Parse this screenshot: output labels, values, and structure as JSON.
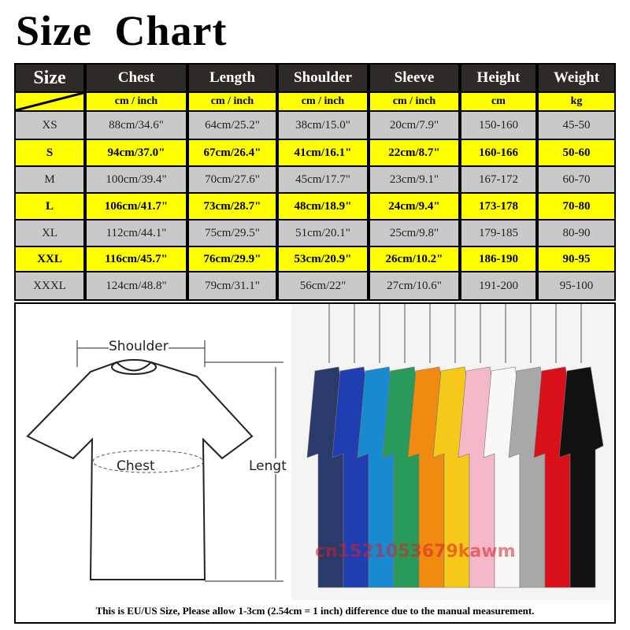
{
  "title": "Size  Chart",
  "headers": [
    "Size",
    "Chest",
    "Length",
    "Shoulder",
    "Sleeve",
    "Height",
    "Weight"
  ],
  "units": [
    "",
    "cm / inch",
    "cm / inch",
    "cm / inch",
    "cm / inch",
    "cm",
    "kg"
  ],
  "rows": [
    [
      "XS",
      "88cm/34.6\"",
      "64cm/25.2\"",
      "38cm/15.0\"",
      "20cm/7.9\"",
      "150-160",
      "45-50"
    ],
    [
      "S",
      "94cm/37.0\"",
      "67cm/26.4\"",
      "41cm/16.1\"",
      "22cm/8.7\"",
      "160-166",
      "50-60"
    ],
    [
      "M",
      "100cm/39.4\"",
      "70cm/27.6\"",
      "45cm/17.7\"",
      "23cm/9.1\"",
      "167-172",
      "60-70"
    ],
    [
      "L",
      "106cm/41.7\"",
      "73cm/28.7\"",
      "48cm/18.9\"",
      "24cm/9.4\"",
      "173-178",
      "70-80"
    ],
    [
      "XL",
      "112cm/44.1\"",
      "75cm/29.5\"",
      "51cm/20.1\"",
      "25cm/9.8\"",
      "179-185",
      "80-90"
    ],
    [
      "XXL",
      "116cm/45.7\"",
      "76cm/29.9\"",
      "53cm/20.9\"",
      "26cm/10.2\"",
      "186-190",
      "90-95"
    ],
    [
      "XXXL",
      "124cm/48.8\"",
      "79cm/31.1\"",
      "56cm/22\"",
      "27cm/10.6\"",
      "191-200",
      "95-100"
    ]
  ],
  "diagram": {
    "shoulder": "Shoulder",
    "chest": "Chest",
    "length": "Lengt"
  },
  "photo": {
    "watermark": "cn1521053679kawm",
    "shirt_colors": [
      "#2a3a6a",
      "#1f3fb0",
      "#1a8ad0",
      "#2a9a5a",
      "#f08a10",
      "#f5c81a",
      "#f4b8c8",
      "#f8f8f8",
      "#a8a8a8",
      "#d8101a",
      "#111111"
    ]
  },
  "note": "This is EU/US Size, Please allow 1-3cm (2.54cm = 1 inch) difference due to the manual measurement."
}
